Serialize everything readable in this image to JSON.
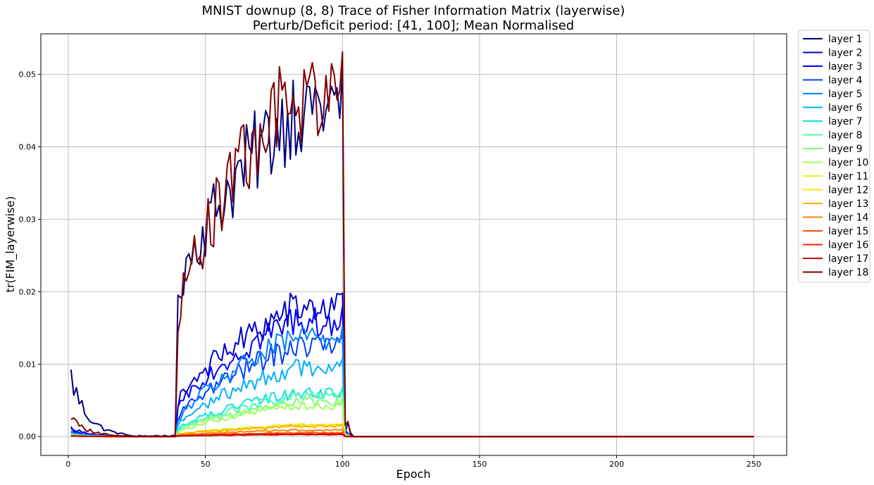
{
  "chart_data": {
    "type": "line",
    "title": "MNIST downup (8, 8) Trace of Fisher Information Matrix (layerwise)",
    "subtitle": "Perturb/Deficit period: [41, 100]; Mean Normalised",
    "xlabel": "Epoch",
    "ylabel": "tr(FIM_layerwise)",
    "xlim": [
      -10,
      262
    ],
    "ylim": [
      -0.0026,
      0.0556
    ],
    "xticks": [
      0,
      50,
      100,
      150,
      200,
      250
    ],
    "yticks": [
      0.0,
      0.01,
      0.02,
      0.03,
      0.04,
      0.05
    ],
    "ytick_labels": [
      "0.00",
      "0.01",
      "0.02",
      "0.03",
      "0.04",
      "0.05"
    ],
    "grid": true,
    "legend_position": "outside-right-top",
    "epochs": [
      1,
      250
    ],
    "perturb_period": [
      41,
      100
    ],
    "series": [
      {
        "name": "layer 1",
        "color": "#00007f",
        "pre": 0.0082,
        "peak": 0.0505,
        "base": 0.0205
      },
      {
        "name": "layer 2",
        "color": "#0000c8",
        "pre": 0.0012,
        "peak": 0.0198,
        "base": 0.0048
      },
      {
        "name": "layer 3",
        "color": "#0000ff",
        "pre": 0.0009,
        "peak": 0.018,
        "base": 0.004
      },
      {
        "name": "layer 4",
        "color": "#0040ff",
        "pre": 0.0006,
        "peak": 0.014,
        "base": 0.0025
      },
      {
        "name": "layer 5",
        "color": "#0080ff",
        "pre": 0.0005,
        "peak": 0.0152,
        "base": 0.002
      },
      {
        "name": "layer 6",
        "color": "#00b0ff",
        "pre": 0.0004,
        "peak": 0.0108,
        "base": 0.0015
      },
      {
        "name": "layer 7",
        "color": "#15e0e2",
        "pre": 0.0003,
        "peak": 0.0068,
        "base": 0.001
      },
      {
        "name": "layer 8",
        "color": "#49ffad",
        "pre": 0.0003,
        "peak": 0.0062,
        "base": 0.0008
      },
      {
        "name": "layer 9",
        "color": "#7cff7a",
        "pre": 0.0002,
        "peak": 0.0055,
        "base": 0.0006
      },
      {
        "name": "layer 10",
        "color": "#a0ff56",
        "pre": 0.0002,
        "peak": 0.0048,
        "base": 0.0005
      },
      {
        "name": "layer 11",
        "color": "#d0ff27",
        "pre": 0.0001,
        "peak": 0.0018,
        "base": 0.0003
      },
      {
        "name": "layer 12",
        "color": "#ffe500",
        "pre": 0.0001,
        "peak": 0.0017,
        "base": 0.0003
      },
      {
        "name": "layer 13",
        "color": "#ffb200",
        "pre": 0.0001,
        "peak": 0.0016,
        "base": 0.0003
      },
      {
        "name": "layer 14",
        "color": "#ff8200",
        "pre": 0.0001,
        "peak": 0.001,
        "base": 0.0002
      },
      {
        "name": "layer 15",
        "color": "#ff4f00",
        "pre": 0.0001,
        "peak": 0.0006,
        "base": 0.0001
      },
      {
        "name": "layer 16",
        "color": "#ff2000",
        "pre": 0.0001,
        "peak": 0.0004,
        "base": 0.0001
      },
      {
        "name": "layer 17",
        "color": "#c40000",
        "pre": 0.0001,
        "peak": 0.0003,
        "base": 0.0001
      },
      {
        "name": "layer 18",
        "color": "#7f0000",
        "pre": 0.0026,
        "peak": 0.0531,
        "base": 0.0175
      }
    ]
  }
}
